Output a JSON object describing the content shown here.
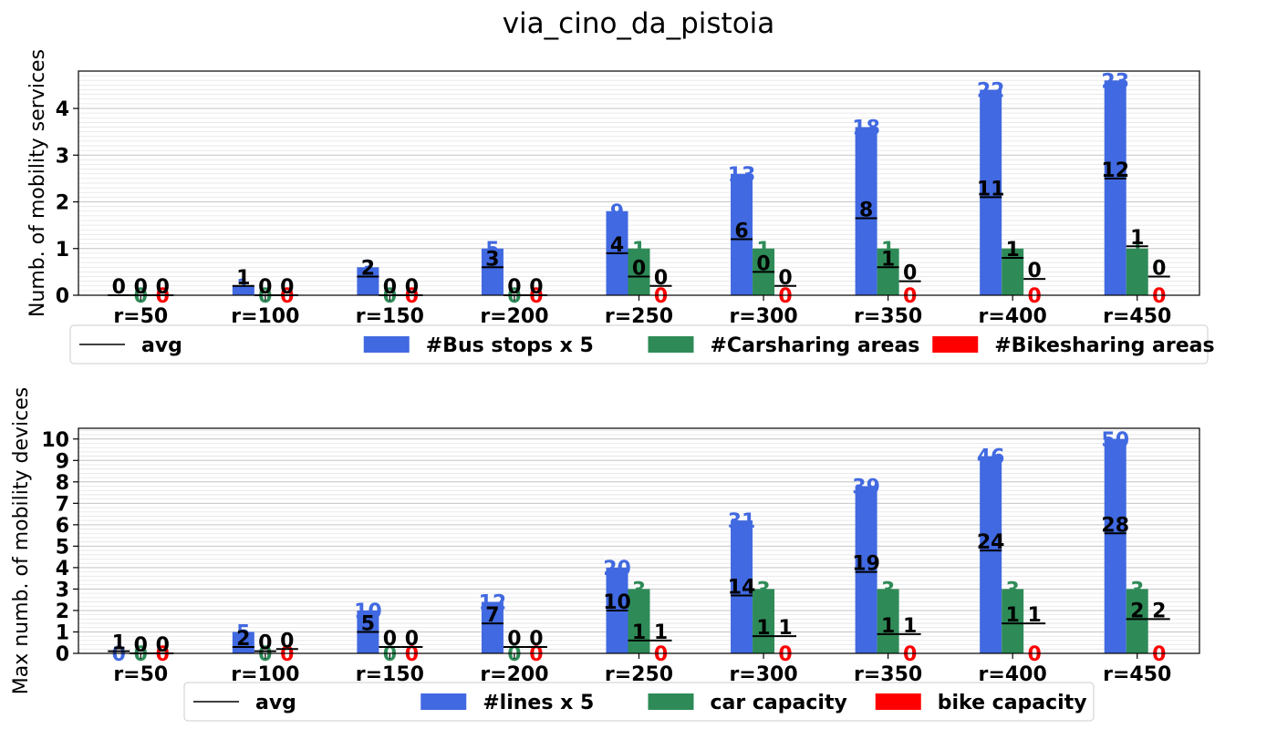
{
  "title": "via_cino_da_pistoia",
  "colors": {
    "bus": "#4169e1",
    "car": "#2e8b57",
    "bike": "#ff0000",
    "avg": "#000000",
    "grid": "#d3d3d3"
  },
  "chart_data": [
    {
      "type": "bar",
      "ylabel": "Numb. of mobility services",
      "ylim": [
        0,
        4.8
      ],
      "yticks": [
        0,
        1,
        2,
        3,
        4
      ],
      "grid": true,
      "legend_position": "below",
      "categories": [
        "r=50",
        "r=100",
        "r=150",
        "r=200",
        "r=250",
        "r=300",
        "r=350",
        "r=400",
        "r=450"
      ],
      "series": [
        {
          "name": "#Bus stops x 5",
          "color_key": "bus",
          "values": [
            0,
            0.2,
            0.6,
            1.0,
            1.8,
            2.6,
            3.6,
            4.4,
            4.6
          ],
          "labels": [
            "",
            "1",
            "3",
            "5",
            "9",
            "13",
            "18",
            "22",
            "23"
          ]
        },
        {
          "name": "#Carsharing areas",
          "color_key": "car",
          "values": [
            0,
            0,
            0,
            0,
            1,
            1,
            1,
            1,
            1
          ],
          "labels": [
            "0",
            "0",
            "0",
            "0",
            "1",
            "1",
            "1",
            "1",
            "1"
          ]
        },
        {
          "name": "#Bikesharing areas",
          "color_key": "bike",
          "values": [
            0,
            0,
            0,
            0,
            0,
            0,
            0,
            0,
            0
          ],
          "labels": [
            "0",
            "0",
            "0",
            "0",
            "0",
            "0",
            "0",
            "0",
            "0"
          ]
        }
      ],
      "avg": {
        "name": "avg",
        "values": [
          [
            0,
            0,
            0
          ],
          [
            0.2,
            0,
            0
          ],
          [
            0.4,
            0,
            0
          ],
          [
            0.6,
            0,
            0
          ],
          [
            0.9,
            0.4,
            0.2
          ],
          [
            1.2,
            0.5,
            0.2
          ],
          [
            1.65,
            0.6,
            0.3
          ],
          [
            2.1,
            0.8,
            0.35
          ],
          [
            2.5,
            1.05,
            0.4
          ]
        ],
        "labels": [
          [
            "0",
            "0",
            "0"
          ],
          [
            "1",
            "0",
            "0"
          ],
          [
            "2",
            "0",
            "0"
          ],
          [
            "3",
            "0",
            "0"
          ],
          [
            "4",
            "0",
            "0"
          ],
          [
            "6",
            "0",
            "0"
          ],
          [
            "8",
            "1",
            "0"
          ],
          [
            "11",
            "1",
            "0"
          ],
          [
            "12",
            "1",
            "0"
          ]
        ]
      }
    },
    {
      "type": "bar",
      "ylabel": "Max numb. of mobility devices",
      "ylim": [
        0,
        10.5
      ],
      "yticks": [
        0,
        1,
        2,
        3,
        4,
        5,
        6,
        7,
        8,
        9,
        10
      ],
      "grid": true,
      "legend_position": "below",
      "categories": [
        "r=50",
        "r=100",
        "r=150",
        "r=200",
        "r=250",
        "r=300",
        "r=350",
        "r=400",
        "r=450"
      ],
      "series": [
        {
          "name": "#lines x 5",
          "color_key": "bus",
          "values": [
            0,
            1.0,
            2.0,
            2.4,
            4.0,
            6.2,
            7.8,
            9.2,
            10.0
          ],
          "labels": [
            "0",
            "5",
            "10",
            "12",
            "20",
            "31",
            "39",
            "46",
            "50"
          ]
        },
        {
          "name": "car capacity",
          "color_key": "car",
          "values": [
            0,
            0,
            0,
            0,
            3,
            3,
            3,
            3,
            3
          ],
          "labels": [
            "0",
            "0",
            "0",
            "0",
            "3",
            "3",
            "3",
            "3",
            "3"
          ]
        },
        {
          "name": "bike capacity",
          "color_key": "bike",
          "values": [
            0,
            0,
            0,
            0,
            0,
            0,
            0,
            0,
            0
          ],
          "labels": [
            "0",
            "0",
            "0",
            "0",
            "0",
            "0",
            "0",
            "0",
            "0"
          ]
        }
      ],
      "avg": {
        "name": "avg",
        "values": [
          [
            0.1,
            0,
            0
          ],
          [
            0.3,
            0.1,
            0.2
          ],
          [
            1.0,
            0.3,
            0.3
          ],
          [
            1.4,
            0.3,
            0.3
          ],
          [
            2.0,
            0.6,
            0.6
          ],
          [
            2.7,
            0.8,
            0.8
          ],
          [
            3.8,
            0.9,
            0.9
          ],
          [
            4.8,
            1.4,
            1.4
          ],
          [
            5.6,
            1.6,
            1.6
          ]
        ],
        "labels": [
          [
            "1",
            "0",
            "0"
          ],
          [
            "2",
            "0",
            "0"
          ],
          [
            "5",
            "0",
            "0"
          ],
          [
            "7",
            "0",
            "0"
          ],
          [
            "10",
            "1",
            "1"
          ],
          [
            "14",
            "1",
            "1"
          ],
          [
            "19",
            "1",
            "1"
          ],
          [
            "24",
            "1",
            "1"
          ],
          [
            "28",
            "2",
            "2"
          ]
        ]
      }
    }
  ]
}
